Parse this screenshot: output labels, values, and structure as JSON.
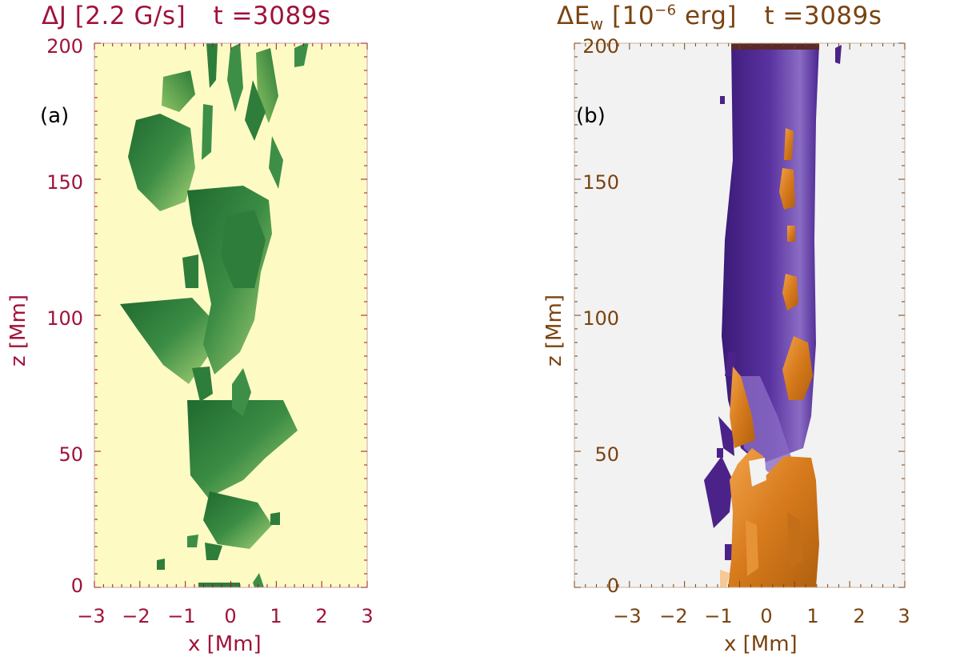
{
  "panels": [
    {
      "id": "a",
      "title": {
        "prefix": "ΔJ [2.2 G/s]",
        "time": "t =3089s"
      },
      "label": "(a)",
      "xlabel": "x [Mm]",
      "ylabel": "z [Mm]",
      "xticks": [
        "−3",
        "−2",
        "−1",
        "0",
        "1",
        "2",
        "3"
      ],
      "yticks": [
        "0",
        "50",
        "100",
        "150",
        "200"
      ],
      "color": "#a0123a",
      "background": "#fdfbc3"
    },
    {
      "id": "b",
      "title": {
        "prefix": "ΔE",
        "sub": "w",
        "unit_open": " [10",
        "sup": "−6",
        "unit_close": " erg]",
        "time": "t =3089s"
      },
      "label": "(b)",
      "xlabel": "x [Mm]",
      "ylabel": "z [Mm]",
      "xticks": [
        "−3",
        "−2",
        "−1",
        "0",
        "1",
        "2",
        "3"
      ],
      "yticks": [
        "0",
        "50",
        "100",
        "150",
        "200"
      ],
      "color": "#7a4310",
      "background": "#f2f2f2"
    }
  ],
  "chart_data": [
    {
      "type": "heatmap",
      "panel": "a",
      "xlim": [
        -3,
        3
      ],
      "ylim": [
        0,
        200
      ],
      "colors": {
        "isosurface": "#2f7d3a",
        "highlight": "#9ccc6a"
      }
    },
    {
      "type": "heatmap",
      "panel": "b",
      "xlim": [
        -3,
        3
      ],
      "ylim": [
        0,
        200
      ],
      "colors": {
        "negative": "#4b2388",
        "positive": "#d9821c"
      }
    }
  ]
}
